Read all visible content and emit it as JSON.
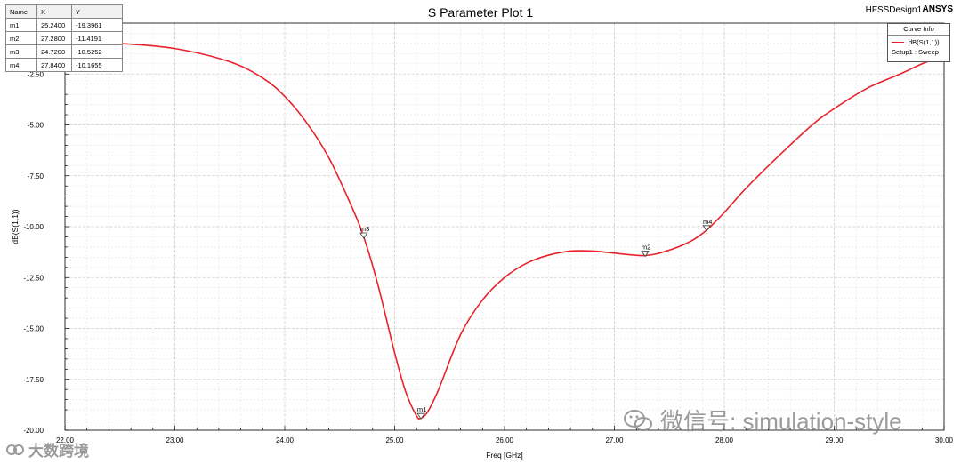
{
  "title": "S Parameter Plot 1",
  "design_label": "HFSSDesign1",
  "brand_label": "ANSYS",
  "marker_table": {
    "headers": [
      "Name",
      "X",
      "Y"
    ],
    "rows": [
      {
        "name": "m1",
        "x": "25.2400",
        "y": "-19.3961"
      },
      {
        "name": "m2",
        "x": "27.2800",
        "y": "-11.4191"
      },
      {
        "name": "m3",
        "x": "24.7200",
        "y": "-10.5252"
      },
      {
        "name": "m4",
        "x": "27.8400",
        "y": "-10.1655"
      }
    ]
  },
  "legend": {
    "header": "Curve Info",
    "series_label": "dB(S(1,1))",
    "setup_label": "Setup1 : Sweep"
  },
  "watermark": "微信号: simulation-style",
  "logo_text": "大数跨境",
  "colors": {
    "curve": "#e8222b",
    "grid": "#d0d0d0",
    "axis": "#000000"
  },
  "chart_data": {
    "type": "line",
    "title": "S Parameter Plot 1",
    "xlabel": "Freq [GHz]",
    "ylabel": "dB(S(1,1))",
    "xlim": [
      22.0,
      30.0
    ],
    "ylim": [
      -20.0,
      0.0
    ],
    "x_ticks": [
      22.0,
      23.0,
      24.0,
      25.0,
      26.0,
      27.0,
      28.0,
      29.0,
      30.0
    ],
    "x_tick_labels": [
      "22.00",
      "23.00",
      "24.00",
      "25.00",
      "26.00",
      "27.00",
      "28.00",
      "29.00",
      "30.00"
    ],
    "y_ticks": [
      -20.0,
      -17.5,
      -15.0,
      -12.5,
      -10.0,
      -7.5,
      -5.0,
      -2.5
    ],
    "y_tick_labels": [
      "-20.00",
      "-17.50",
      "-15.00",
      "-12.50",
      "-10.00",
      "-7.50",
      "-5.00",
      "-2.50"
    ],
    "grid": true,
    "legend_position": "top-right",
    "series": [
      {
        "name": "dB(S(1,1))",
        "color": "#e8222b",
        "x": [
          22.0,
          22.5,
          23.0,
          23.5,
          23.8,
          24.0,
          24.2,
          24.4,
          24.6,
          24.72,
          24.85,
          25.0,
          25.1,
          25.2,
          25.24,
          25.3,
          25.4,
          25.6,
          25.8,
          26.0,
          26.2,
          26.4,
          26.6,
          26.8,
          27.0,
          27.28,
          27.5,
          27.7,
          27.84,
          28.0,
          28.2,
          28.5,
          28.8,
          29.0,
          29.3,
          29.6,
          29.8,
          30.0
        ],
        "y": [
          -0.9,
          -1.0,
          -1.25,
          -1.9,
          -2.7,
          -3.6,
          -4.9,
          -6.6,
          -8.9,
          -10.5252,
          -12.9,
          -16.2,
          -18.1,
          -19.3,
          -19.3961,
          -19.1,
          -18.0,
          -15.3,
          -13.6,
          -12.5,
          -11.8,
          -11.4,
          -11.2,
          -11.2,
          -11.3,
          -11.4191,
          -11.15,
          -10.7,
          -10.1655,
          -9.3,
          -8.1,
          -6.5,
          -5.0,
          -4.2,
          -3.2,
          -2.5,
          -2.0,
          -1.6
        ]
      }
    ],
    "markers": [
      {
        "name": "m1",
        "x": 25.24,
        "y": -19.3961
      },
      {
        "name": "m2",
        "x": 27.28,
        "y": -11.4191
      },
      {
        "name": "m3",
        "x": 24.72,
        "y": -10.5252
      },
      {
        "name": "m4",
        "x": 27.84,
        "y": -10.1655
      }
    ]
  }
}
